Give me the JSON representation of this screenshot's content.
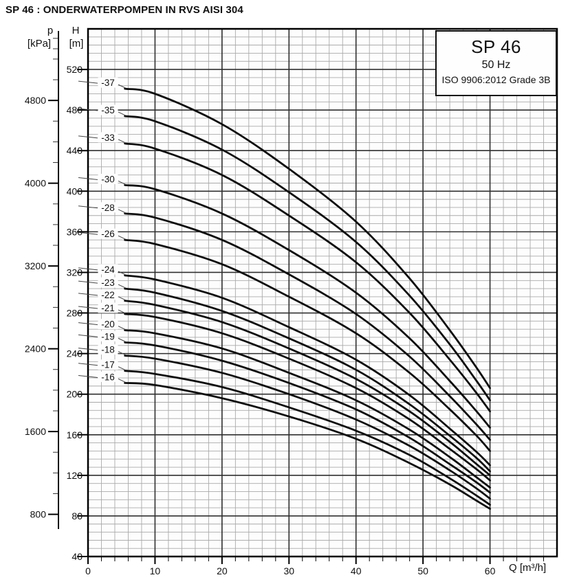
{
  "title": "SP 46 : ONDERWATERPOMPEN IN RVS AISI 304",
  "legend_box": {
    "model": "SP 46",
    "frequency": "50 Hz",
    "standard": "ISO 9906:2012 Grade 3B"
  },
  "axis_labels": {
    "pressure_symbol": "p",
    "pressure_unit": "[kPa]",
    "head_symbol": "H",
    "head_unit": "[m]",
    "flow_label": "Q [m³/h]"
  },
  "chart_data": {
    "type": "line",
    "title": "SP 46 50 Hz pump performance curves (head vs flow per stage count)",
    "xlabel": "Q [m³/h]",
    "ylabel": "H [m]",
    "xlim": [
      0,
      70
    ],
    "ylim": [
      40,
      560
    ],
    "grid": true,
    "legend_position": "top-right",
    "line_color": "#0d0d0d",
    "grid_minor_color": "#a9a9a9",
    "grid_major_color": "#2f2f2f",
    "x_major_ticks": [
      0,
      10,
      20,
      30,
      40,
      50,
      60
    ],
    "x_minor_step": 2,
    "y_major_ticks": [
      40,
      80,
      120,
      160,
      200,
      240,
      280,
      320,
      360,
      400,
      440,
      480,
      520
    ],
    "y_minor_step": 8,
    "pressure_axis": {
      "unit": "kPa",
      "major_ticks": [
        800,
        1600,
        2400,
        3200,
        4000,
        4800
      ],
      "minor_step": 200,
      "minor_max": 5400,
      "kpa_per_m": 9.80665
    },
    "q_values": [
      5.5,
      10,
      20,
      30,
      40,
      48,
      54,
      58,
      60
    ],
    "series": [
      {
        "name": "-37",
        "stages": 37,
        "values": [
          501,
          496,
          466,
          422,
          370,
          314,
          263,
          226,
          206
        ]
      },
      {
        "name": "-35",
        "stages": 35,
        "values": [
          474,
          469,
          441,
          399,
          350,
          297,
          249,
          213,
          194
        ]
      },
      {
        "name": "-33",
        "stages": 33,
        "values": [
          447,
          442,
          416,
          376,
          330,
          280,
          234,
          201,
          183
        ]
      },
      {
        "name": "-30",
        "stages": 30,
        "values": [
          406,
          402,
          378,
          342,
          300,
          255,
          213,
          183,
          167
        ]
      },
      {
        "name": "-28",
        "stages": 28,
        "values": [
          378,
          374,
          352,
          318,
          279,
          237,
          198,
          170,
          155
        ]
      },
      {
        "name": "-26",
        "stages": 26,
        "values": [
          352,
          348,
          328,
          296,
          260,
          221,
          185,
          159,
          144
        ]
      },
      {
        "name": "-24",
        "stages": 24,
        "values": [
          317,
          313,
          295,
          266,
          234,
          199,
          166,
          143,
          130
        ]
      },
      {
        "name": "-23",
        "stages": 23,
        "values": [
          304,
          300,
          282,
          255,
          224,
          190,
          159,
          137,
          124
        ]
      },
      {
        "name": "-22",
        "stages": 22,
        "values": [
          292,
          288,
          271,
          245,
          215,
          183,
          153,
          131,
          120
        ]
      },
      {
        "name": "-21",
        "stages": 21,
        "values": [
          279,
          276,
          260,
          235,
          206,
          175,
          146,
          126,
          115
        ]
      },
      {
        "name": "-20",
        "stages": 20,
        "values": [
          263,
          260,
          245,
          221,
          194,
          165,
          138,
          118,
          108
        ]
      },
      {
        "name": "-19",
        "stages": 19,
        "values": [
          251,
          248,
          233,
          211,
          185,
          157,
          131,
          113,
          103
        ]
      },
      {
        "name": "-18",
        "stages": 18,
        "values": [
          238,
          235,
          221,
          200,
          175,
          149,
          125,
          107,
          97
        ]
      },
      {
        "name": "-17",
        "stages": 17,
        "values": [
          223,
          220,
          207,
          187,
          164,
          140,
          117,
          100,
          91
        ]
      },
      {
        "name": "-16",
        "stages": 16,
        "values": [
          211,
          209,
          196,
          178,
          156,
          132,
          111,
          95,
          87
        ]
      }
    ]
  }
}
